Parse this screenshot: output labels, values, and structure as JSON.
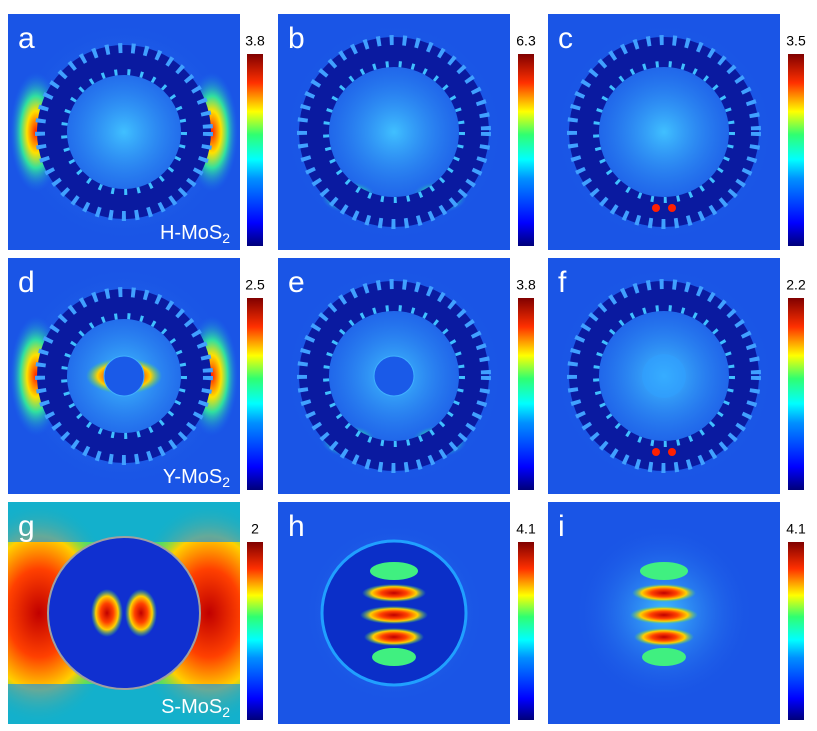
{
  "panels": [
    {
      "letter": "a",
      "colorbar_max": 3.8,
      "material": {
        "text": "H-MoS",
        "subscript": "2"
      }
    },
    {
      "letter": "b",
      "colorbar_max": 6.3
    },
    {
      "letter": "c",
      "colorbar_max": 3.5
    },
    {
      "letter": "d",
      "colorbar_max": 2.5,
      "material": {
        "text": "Y-MoS",
        "subscript": "2"
      }
    },
    {
      "letter": "e",
      "colorbar_max": 3.8
    },
    {
      "letter": "f",
      "colorbar_max": 2.2
    },
    {
      "letter": "g",
      "colorbar_max": 2,
      "material": {
        "text": "S-MoS",
        "subscript": "2"
      }
    },
    {
      "letter": "h",
      "colorbar_max": 4.1
    },
    {
      "letter": "i",
      "colorbar_max": 4.1
    }
  ]
}
